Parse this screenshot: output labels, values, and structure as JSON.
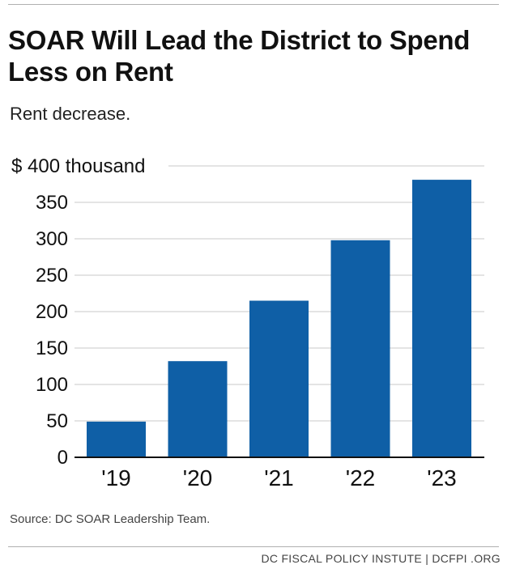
{
  "chart_data": {
    "type": "bar",
    "title": "SOAR Will Lead the District to Spend Less on Rent",
    "subtitle": "Rent decrease.",
    "categories": [
      "'19",
      "'20",
      "'21",
      "'22",
      "'23"
    ],
    "values": [
      49,
      132,
      215,
      298,
      381
    ],
    "ylim": [
      0,
      400
    ],
    "yticks": [
      0,
      50,
      100,
      150,
      200,
      250,
      300,
      350,
      400
    ],
    "ytick_labels": [
      "0",
      "50",
      "100",
      "150",
      "200",
      "250",
      "300",
      "350",
      "$ 400 thousand"
    ],
    "bar_color": "#0f5fa6",
    "grid": true
  },
  "source": "Source: DC SOAR Leadership Team.",
  "footer": "DC FISCAL POLICY INSTUTE  |  DCFPI .ORG"
}
